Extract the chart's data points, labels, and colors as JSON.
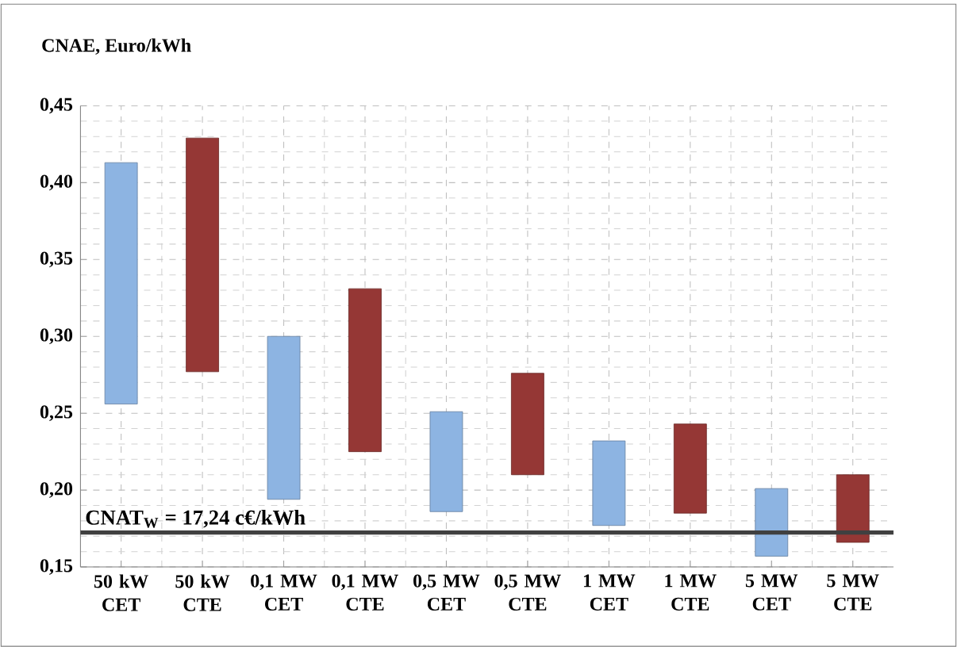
{
  "chart_data": {
    "type": "bar",
    "ylabel": "CNAE, Euro/kWh",
    "categories": [
      "50 kW CET",
      "50 kW CTE",
      "0,1 MW CET",
      "0,1 MW CTE",
      "0,5 MW CET",
      "0,5 MW CTE",
      "1 MW CET",
      "1 MW CTE",
      "5 MW CET",
      "5 MW CTE"
    ],
    "base": [
      0.256,
      0.277,
      0.194,
      0.225,
      0.186,
      0.21,
      0.177,
      0.185,
      0.157,
      0.166
    ],
    "values": [
      0.157,
      0.152,
      0.106,
      0.106,
      0.065,
      0.066,
      0.055,
      0.058,
      0.044,
      0.044
    ],
    "colors": [
      "#8db4e2",
      "#953735",
      "#8db4e2",
      "#953735",
      "#8db4e2",
      "#953735",
      "#8db4e2",
      "#953735",
      "#8db4e2",
      "#953735"
    ],
    "ylim": [
      0.15,
      0.45
    ],
    "yticks": [
      {
        "value": 0.15,
        "label": "0,15"
      },
      {
        "value": 0.2,
        "label": "0,20"
      },
      {
        "value": 0.25,
        "label": "0,25"
      },
      {
        "value": 0.3,
        "label": "0,30"
      },
      {
        "value": 0.35,
        "label": "0,35"
      },
      {
        "value": 0.4,
        "label": "0,40"
      },
      {
        "value": 0.45,
        "label": "0,45"
      }
    ],
    "grid": true,
    "ref_lines": [
      {
        "axis": "y",
        "value": 0.1724,
        "label": "CNAT$_{W}$ = 17,24 c€/kWh",
        "color": "#404040"
      }
    ]
  }
}
